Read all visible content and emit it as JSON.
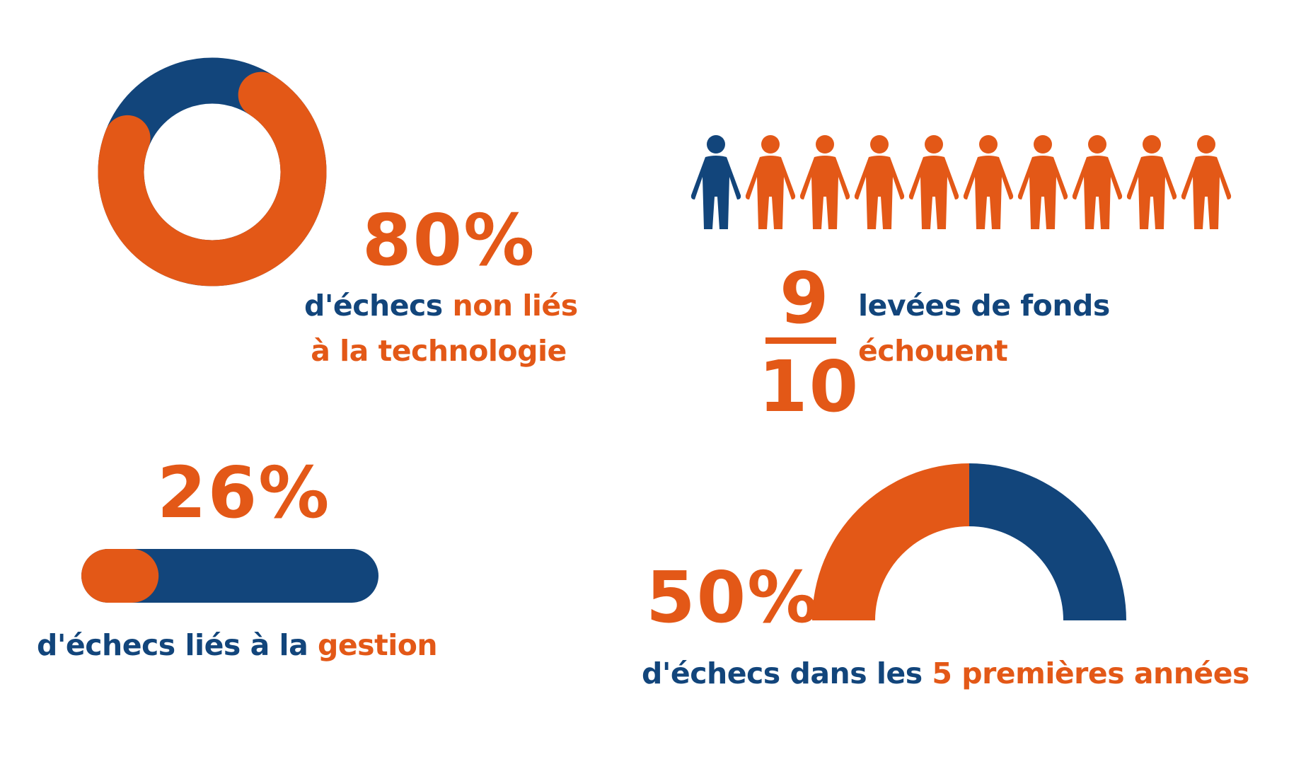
{
  "colors": {
    "blue": "#12457b",
    "orange": "#e35817",
    "background": "#ffffff"
  },
  "stat_tech": {
    "value_text": "80%",
    "fraction": 0.8,
    "caption_line1_part1": "d'échecs ",
    "caption_line1_part2": "non liés",
    "caption_line2": "à la technologie"
  },
  "stat_fundraising": {
    "numerator": "9",
    "denominator": "10",
    "failed_people": 9,
    "total_people": 10,
    "caption_line1": "levées de fonds",
    "caption_line2": "échouent",
    "icon": "person-icon"
  },
  "stat_management": {
    "value_text": "26%",
    "fraction": 0.26,
    "caption_part1": "d'échecs liés à la ",
    "caption_part2": "gestion"
  },
  "stat_first_years": {
    "value_text": "50%",
    "fraction": 0.5,
    "caption_part1": "d'échecs dans les ",
    "caption_part2": "5 premières années"
  }
}
